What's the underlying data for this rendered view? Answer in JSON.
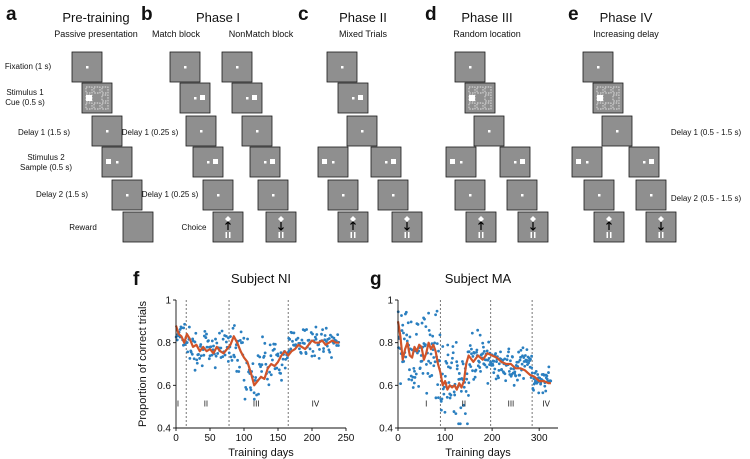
{
  "panels": {
    "a": {
      "letter": "a",
      "title": "Pre-training",
      "subtitle": "Passive presentation"
    },
    "b": {
      "letter": "b",
      "title": "Phase I",
      "sub_match": "Match block",
      "sub_nonmatch": "NonMatch block"
    },
    "c": {
      "letter": "c",
      "title": "Phase II",
      "subtitle": "Mixed Trials"
    },
    "d": {
      "letter": "d",
      "title": "Phase III",
      "subtitle": "Random location"
    },
    "e": {
      "letter": "e",
      "title": "Phase IV",
      "subtitle": "Increasing delay"
    }
  },
  "epoch_labels": {
    "fixation": "Fixation (1 s)",
    "stim1_line1": "Stimulus 1",
    "stim1_line2": "Cue (0.5 s)",
    "delay1": "Delay 1 (1.5 s)",
    "stim2_line1": "Stimulus 2",
    "stim2_line2": "Sample (0.5 s)",
    "delay2": "Delay 2 (1.5 s)",
    "reward": "Reward"
  },
  "phase1_labels": {
    "delay1": "Delay 1 (0.25 s)",
    "delay2": "Delay 1 (0.25 s)",
    "choice": "Choice"
  },
  "phase4_labels": {
    "delay1": "Delay 1 (0.5 - 1.5 s)",
    "delay2": "Delay 2 (0.5 - 1.5 s)"
  },
  "colors": {
    "dots": "#2a7fc0",
    "curve": "#d0542a",
    "card": "#8f8f8f"
  },
  "chart_data": [
    {
      "letter": "f",
      "type": "scatter",
      "title": "Subject NI",
      "xlabel": "Training days",
      "ylabel": "Proportion of correct trials",
      "xlim": [
        0,
        250
      ],
      "ylim": [
        0.4,
        1.0
      ],
      "xticks": [
        0,
        50,
        100,
        150,
        200,
        250
      ],
      "xtick_labels": [
        "0",
        "50",
        "100",
        "150",
        "200",
        "250"
      ],
      "yticks": [
        0.4,
        0.6,
        0.8,
        1.0
      ],
      "ytick_labels": [
        "0.4",
        "0.6",
        "0.8",
        "1"
      ],
      "phase_boundaries": [
        15,
        78,
        165
      ],
      "phase_labels": [
        {
          "label": "I",
          "x": 3
        },
        {
          "label": "II",
          "x": 44
        },
        {
          "label": "III",
          "x": 118
        },
        {
          "label": "IV",
          "x": 205
        }
      ],
      "series": [
        {
          "name": "daily performance",
          "kind": "points",
          "seed": 7,
          "segments": [
            [
              0,
              15,
              0.86,
              0.05
            ],
            [
              15,
              78,
              0.78,
              0.045
            ],
            [
              78,
              100,
              0.8,
              0.06
            ],
            [
              100,
              125,
              0.65,
              0.07
            ],
            [
              125,
              165,
              0.72,
              0.05
            ],
            [
              165,
              240,
              0.8,
              0.035
            ]
          ]
        },
        {
          "name": "smoothed",
          "kind": "line",
          "x": [
            0,
            4,
            8,
            12,
            16,
            20,
            25,
            30,
            35,
            40,
            45,
            50,
            55,
            60,
            65,
            70,
            75,
            80,
            85,
            90,
            95,
            100,
            105,
            110,
            115,
            120,
            125,
            130,
            135,
            140,
            145,
            150,
            155,
            160,
            165,
            170,
            175,
            180,
            185,
            190,
            195,
            200,
            205,
            210,
            215,
            220,
            225,
            230,
            235,
            240
          ],
          "y": [
            0.88,
            0.84,
            0.83,
            0.8,
            0.84,
            0.82,
            0.78,
            0.79,
            0.76,
            0.78,
            0.76,
            0.77,
            0.75,
            0.78,
            0.76,
            0.75,
            0.77,
            0.79,
            0.83,
            0.8,
            0.76,
            0.73,
            0.71,
            0.66,
            0.6,
            0.62,
            0.64,
            0.63,
            0.68,
            0.7,
            0.69,
            0.71,
            0.74,
            0.76,
            0.74,
            0.76,
            0.77,
            0.79,
            0.78,
            0.77,
            0.79,
            0.81,
            0.8,
            0.8,
            0.81,
            0.79,
            0.8,
            0.81,
            0.8,
            0.8
          ]
        }
      ]
    },
    {
      "letter": "g",
      "type": "scatter",
      "title": "Subject MA",
      "xlabel": "Training days",
      "ylabel": "",
      "xlim": [
        0,
        340
      ],
      "ylim": [
        0.4,
        1.0
      ],
      "xticks": [
        0,
        100,
        200,
        300
      ],
      "xtick_labels": [
        "0",
        "100",
        "200",
        "300"
      ],
      "yticks": [
        0.4,
        0.6,
        0.8,
        1.0
      ],
      "ytick_labels": [
        "0.4",
        "0.6",
        "0.8",
        "1"
      ],
      "phase_boundaries": [
        90,
        197,
        285
      ],
      "phase_labels": [
        {
          "label": "I",
          "x": 60
        },
        {
          "label": "II",
          "x": 140
        },
        {
          "label": "III",
          "x": 240
        },
        {
          "label": "IV",
          "x": 315
        }
      ],
      "series": [
        {
          "name": "daily performance",
          "kind": "points",
          "seed": 13,
          "segments": [
            [
              0,
              20,
              0.82,
              0.09
            ],
            [
              20,
              90,
              0.74,
              0.1
            ],
            [
              90,
              150,
              0.6,
              0.1
            ],
            [
              150,
              197,
              0.72,
              0.06
            ],
            [
              197,
              285,
              0.69,
              0.04
            ],
            [
              285,
              325,
              0.63,
              0.025
            ]
          ]
        },
        {
          "name": "smoothed",
          "kind": "line",
          "x": [
            0,
            5,
            10,
            15,
            20,
            25,
            30,
            35,
            40,
            45,
            50,
            55,
            60,
            65,
            70,
            75,
            80,
            85,
            90,
            95,
            100,
            105,
            110,
            115,
            120,
            125,
            130,
            135,
            140,
            145,
            150,
            160,
            170,
            180,
            190,
            200,
            210,
            220,
            230,
            240,
            250,
            260,
            270,
            280,
            290,
            300,
            310,
            320,
            325
          ],
          "y": [
            0.9,
            0.83,
            0.72,
            0.77,
            0.8,
            0.74,
            0.73,
            0.78,
            0.76,
            0.79,
            0.78,
            0.72,
            0.75,
            0.8,
            0.77,
            0.79,
            0.76,
            0.7,
            0.66,
            0.6,
            0.62,
            0.58,
            0.6,
            0.59,
            0.6,
            0.58,
            0.61,
            0.59,
            0.62,
            0.7,
            0.74,
            0.71,
            0.74,
            0.72,
            0.75,
            0.74,
            0.73,
            0.71,
            0.7,
            0.7,
            0.68,
            0.68,
            0.67,
            0.65,
            0.64,
            0.62,
            0.62,
            0.61,
            0.61
          ]
        }
      ]
    }
  ]
}
